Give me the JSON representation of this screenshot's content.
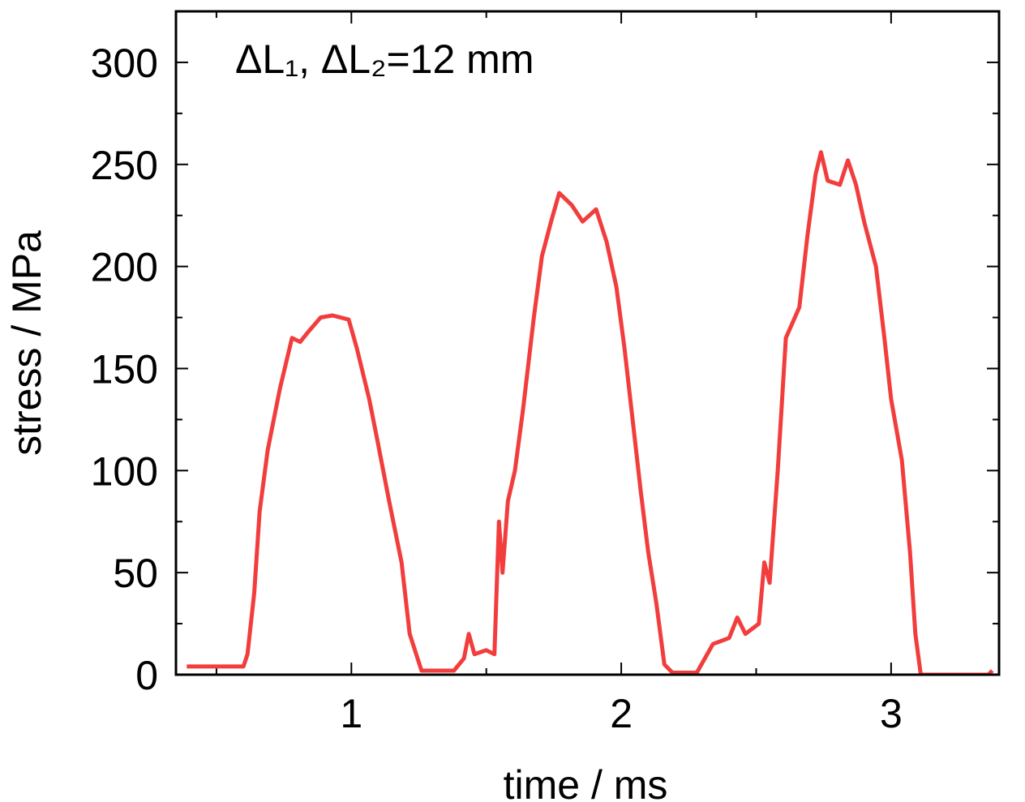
{
  "chart_data": {
    "type": "line",
    "annotation": "ΔL₁, ΔL₂=12 mm",
    "x_label": "time / ms",
    "y_label": "stress / MPa",
    "xlim": [
      0.35,
      3.4
    ],
    "xticks": [
      1,
      2,
      3
    ],
    "ylim": [
      0,
      325
    ],
    "yticks": [
      0,
      50,
      100,
      150,
      200,
      250,
      300
    ],
    "grid": false,
    "series": [
      {
        "name": "stress",
        "color": "#f23d3d",
        "x": [
          0.39,
          0.6,
          0.615,
          0.64,
          0.66,
          0.69,
          0.735,
          0.78,
          0.81,
          0.84,
          0.886,
          0.93,
          0.99,
          1.02,
          1.066,
          1.096,
          1.14,
          1.186,
          1.216,
          1.26,
          1.38,
          1.417,
          1.435,
          1.456,
          1.5,
          1.53,
          1.547,
          1.56,
          1.58,
          1.606,
          1.636,
          1.676,
          1.706,
          1.74,
          1.77,
          1.817,
          1.857,
          1.907,
          1.946,
          1.982,
          2.012,
          2.042,
          2.072,
          2.1,
          2.13,
          2.16,
          2.19,
          2.28,
          2.34,
          2.4,
          2.43,
          2.46,
          2.51,
          2.53,
          2.55,
          2.58,
          2.61,
          2.66,
          2.69,
          2.72,
          2.74,
          2.765,
          2.81,
          2.84,
          2.87,
          2.9,
          2.944,
          2.975,
          3.0,
          3.04,
          3.07,
          3.09,
          3.11,
          3.36,
          3.375
        ],
        "values": [
          4,
          4,
          10,
          40,
          80,
          110,
          140,
          165,
          163,
          168,
          175,
          176,
          174,
          160,
          135,
          115,
          85,
          55,
          20,
          2,
          2,
          8,
          20,
          10,
          12,
          10,
          75,
          50,
          85,
          100,
          130,
          175,
          205,
          222,
          236,
          230,
          222,
          228,
          212,
          190,
          160,
          125,
          90,
          60,
          35,
          5,
          1,
          1,
          15,
          18,
          28,
          20,
          25,
          55,
          45,
          100,
          165,
          180,
          215,
          245,
          256,
          242,
          240,
          252,
          240,
          222,
          200,
          165,
          135,
          105,
          60,
          20,
          0,
          0,
          2
        ]
      }
    ]
  }
}
